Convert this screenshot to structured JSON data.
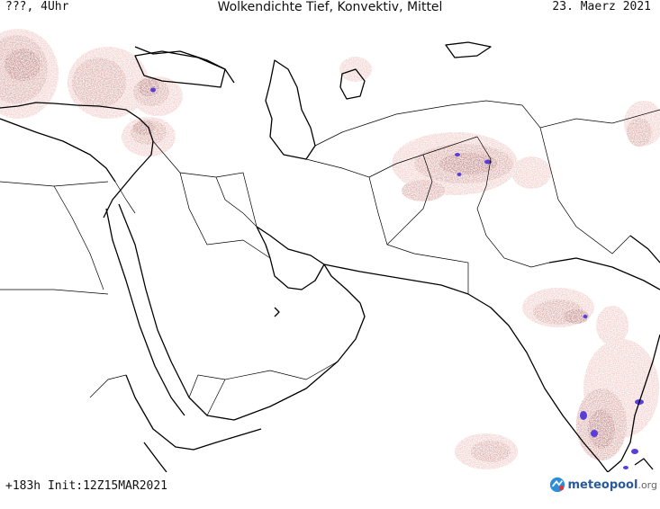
{
  "header": {
    "run_label": "???, 4Uhr",
    "title": "Wolkendichte   Tief, Konvektiv, Mittel",
    "date": "23. Maerz 2021"
  },
  "footer": {
    "forecast": "+183h  Init:12Z15MAR2021",
    "logo": {
      "icon": "meteopool-logo-icon",
      "name": "meteopool",
      "domain": ".org"
    }
  },
  "colors": {
    "background": "#ffffff",
    "borders": "#000000",
    "cloud_light": "#e7b2ae",
    "cloud_medium": "#c98680",
    "cloud_dense": "#a0504c",
    "convective": "#5a3ed8",
    "logo_blue": "#2a5a9a"
  },
  "map": {
    "region": "Middle East, Arabia, South Asia",
    "layer": "cloud-density",
    "legend": "none"
  }
}
